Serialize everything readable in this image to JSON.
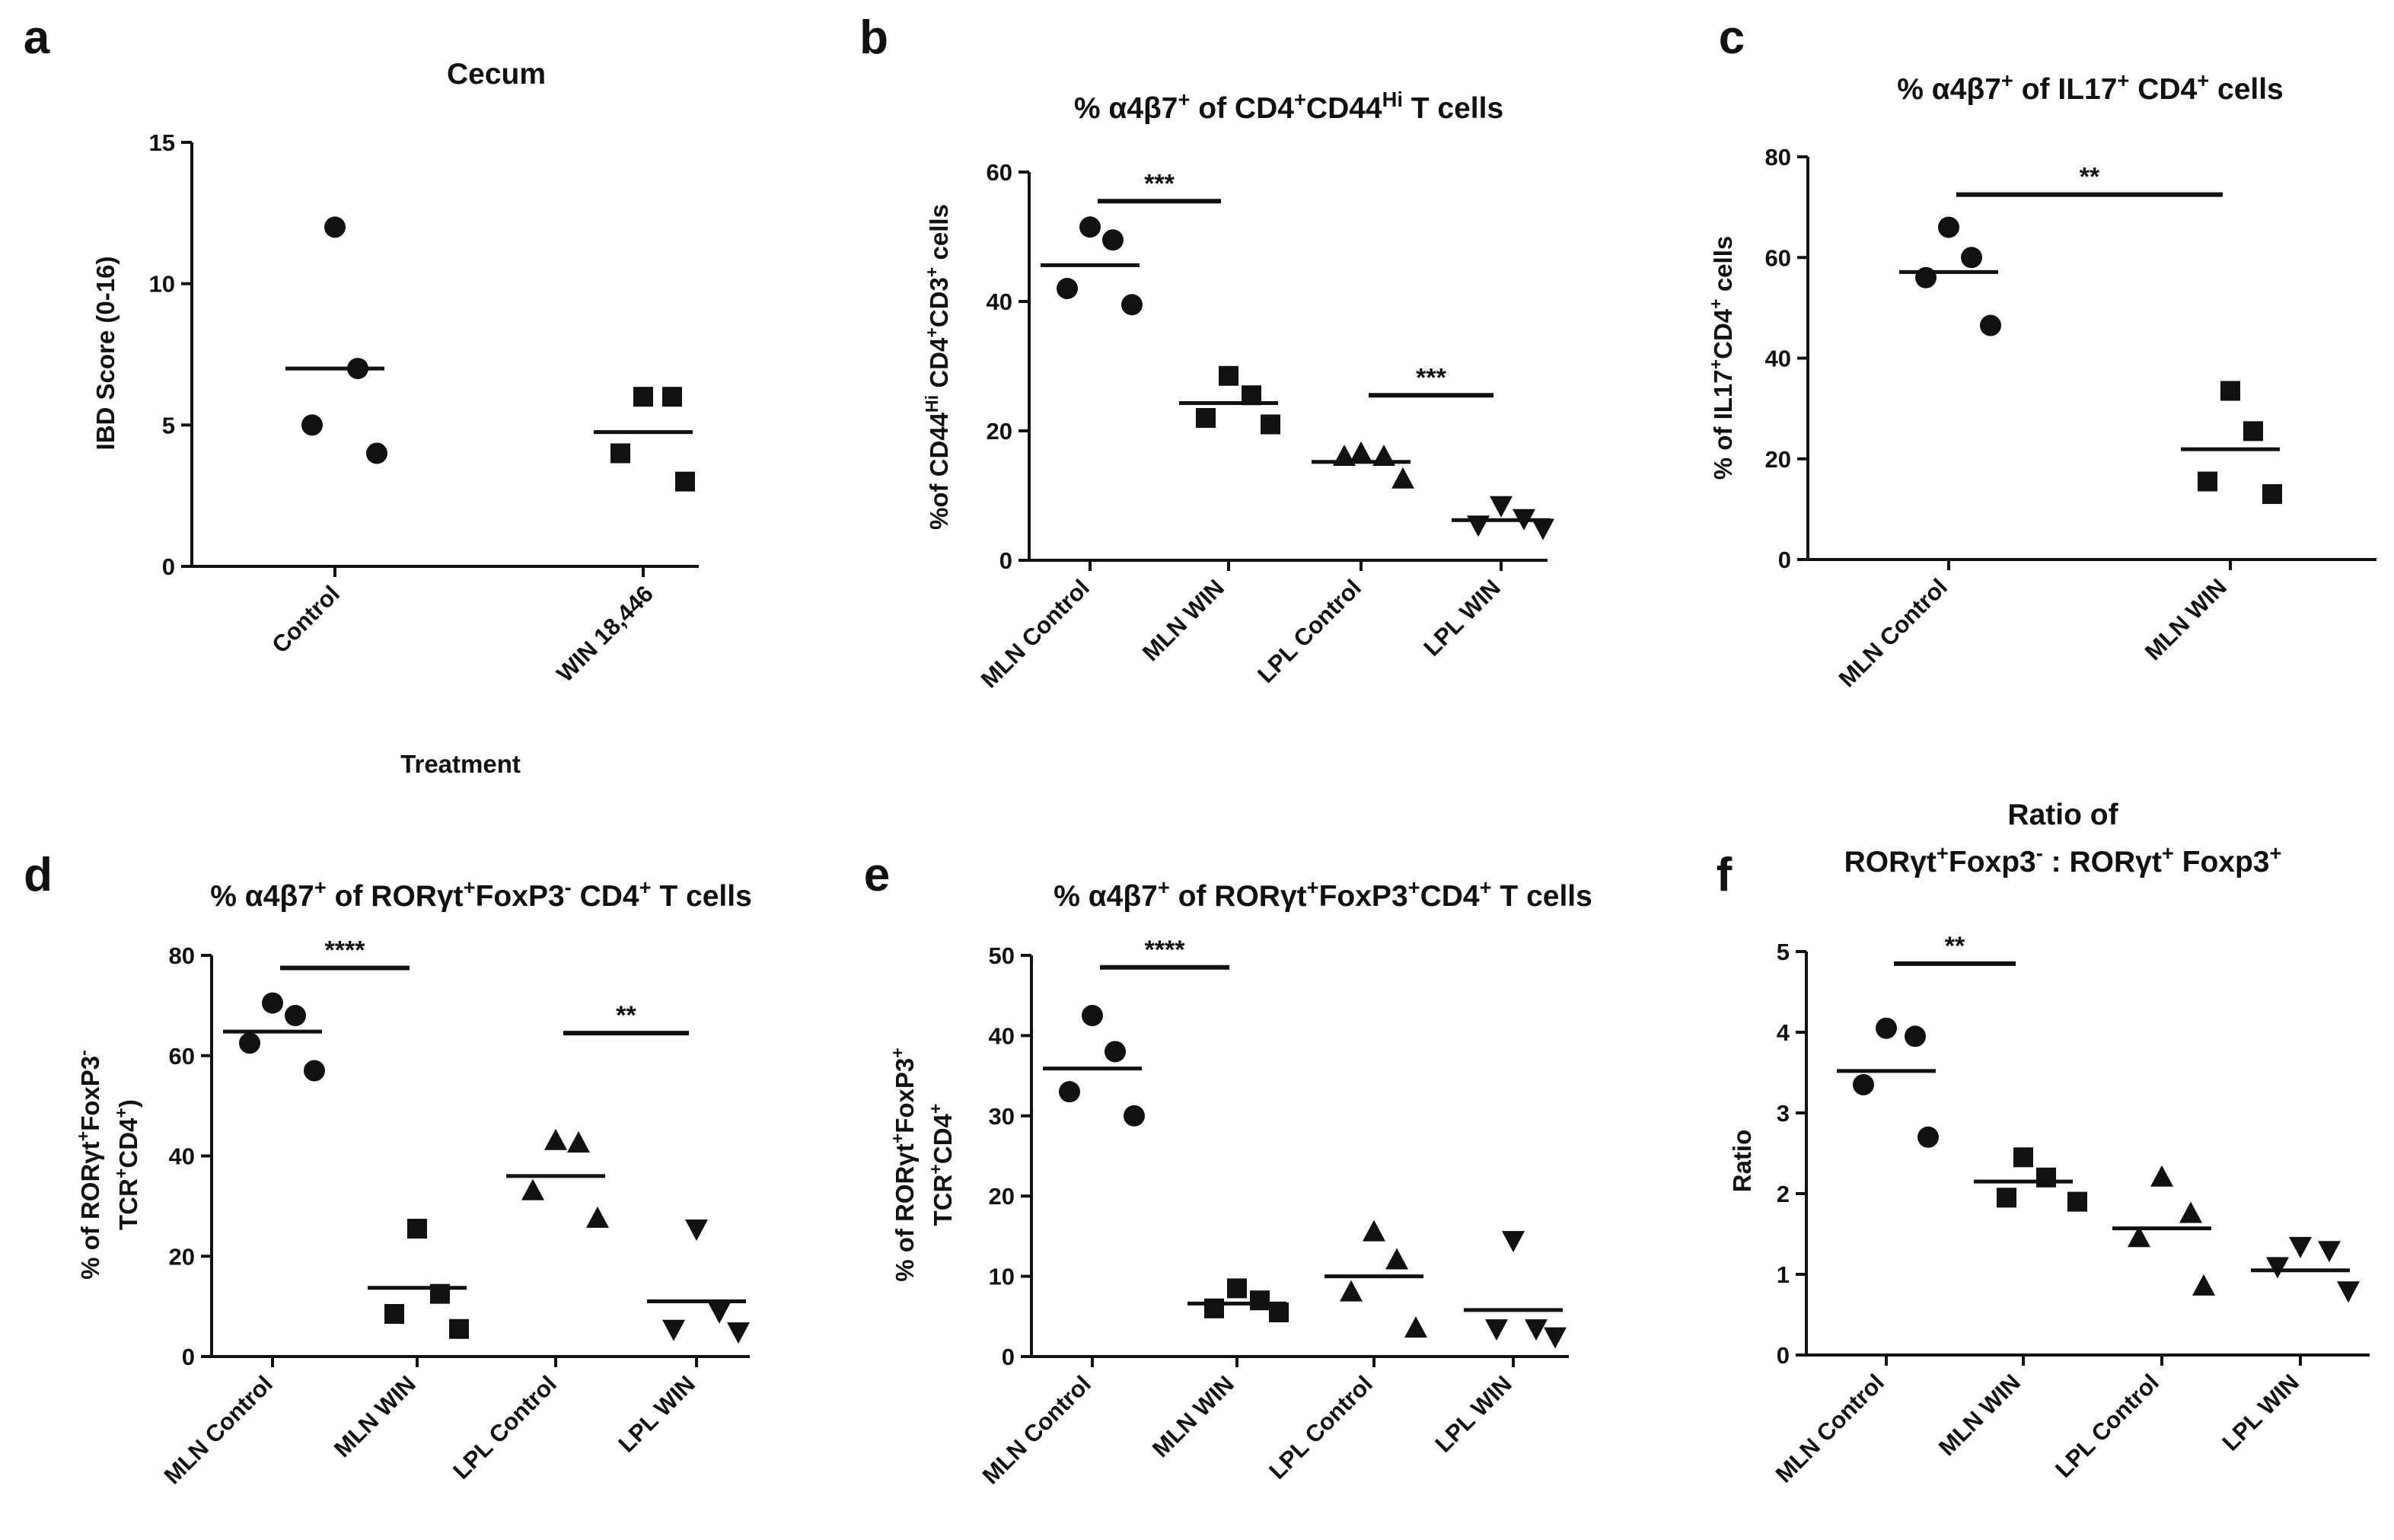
{
  "chart_data": [
    {
      "id": "a",
      "panel_label": "a",
      "type": "scatter",
      "title_lines": [
        [
          {
            "t": "Cecum"
          }
        ]
      ],
      "ylabel_lines": [
        [
          {
            "t": "IBD  Score (0-16)"
          }
        ]
      ],
      "xlabel": "Treatment",
      "ylim": [
        0,
        15
      ],
      "ytick_labels": [
        "0",
        "5",
        "10",
        "15"
      ],
      "groups": [
        {
          "label": "Control",
          "marker": "circle",
          "values": [
            12,
            7,
            5,
            4
          ],
          "mean": 7
        },
        {
          "label": "WIN 18,446",
          "marker": "square",
          "values": [
            6,
            6,
            4,
            3
          ],
          "mean": 4.75
        }
      ],
      "significance": []
    },
    {
      "id": "b",
      "panel_label": "b",
      "type": "scatter",
      "title_lines": [
        [
          {
            "t": "% α4β7"
          },
          {
            "t": "+",
            "sup": true
          },
          {
            "t": " of CD4"
          },
          {
            "t": "+",
            "sup": true
          },
          {
            "t": "CD44"
          },
          {
            "t": "Hi",
            "sup": true
          },
          {
            "t": " T cells"
          }
        ]
      ],
      "ylabel_lines": [
        [
          {
            "t": "%of CD44"
          },
          {
            "t": "Hi",
            "sup": true
          },
          {
            "t": " CD4"
          },
          {
            "t": "+",
            "sup": true
          },
          {
            "t": "CD3"
          },
          {
            "t": "+",
            "sup": true
          },
          {
            "t": " cells"
          }
        ]
      ],
      "xlabel": "",
      "ylim": [
        0,
        60
      ],
      "ytick_labels": [
        "0",
        "20",
        "40",
        "60"
      ],
      "groups": [
        {
          "label": "MLN Control",
          "marker": "circle",
          "values": [
            51.5,
            49.5,
            42,
            39.5
          ],
          "mean": 45.6
        },
        {
          "label": "MLN WIN",
          "marker": "square",
          "values": [
            28.5,
            25.5,
            22,
            21
          ],
          "mean": 24.3
        },
        {
          "label": "LPL Control",
          "marker": "triangle",
          "values": [
            16.5,
            16,
            16,
            12.5
          ],
          "mean": 15.2
        },
        {
          "label": "LPL WIN",
          "marker": "triangle-down",
          "values": [
            8.5,
            6.5,
            5.5,
            5
          ],
          "mean": 6.2
        }
      ],
      "significance": [
        {
          "from": 0,
          "to": 1,
          "y": 55.5,
          "label": "***"
        },
        {
          "from": 2,
          "to": 3,
          "y": 25.5,
          "label": "***"
        }
      ]
    },
    {
      "id": "c",
      "panel_label": "c",
      "type": "scatter",
      "title_lines": [
        [
          {
            "t": "% α4β7"
          },
          {
            "t": "+",
            "sup": true
          },
          {
            "t": " of IL17"
          },
          {
            "t": "+",
            "sup": true
          },
          {
            "t": " CD4"
          },
          {
            "t": "+",
            "sup": true
          },
          {
            "t": " cells"
          }
        ]
      ],
      "ylabel_lines": [
        [
          {
            "t": "% of IL17"
          },
          {
            "t": "+",
            "sup": true
          },
          {
            "t": "CD4"
          },
          {
            "t": "+",
            "sup": true
          },
          {
            "t": " cells"
          }
        ]
      ],
      "xlabel": "",
      "ylim": [
        0,
        80
      ],
      "ytick_labels": [
        "0",
        "20",
        "40",
        "60",
        "80"
      ],
      "groups": [
        {
          "label": "MLN Control",
          "marker": "circle",
          "values": [
            66,
            60,
            56,
            46.5
          ],
          "mean": 57.1
        },
        {
          "label": "MLN WIN",
          "marker": "square",
          "values": [
            33.5,
            25.5,
            15.5,
            13
          ],
          "mean": 21.9
        }
      ],
      "significance": [
        {
          "from": 0,
          "to": 1,
          "y": 72.5,
          "label": "**"
        }
      ]
    },
    {
      "id": "d",
      "panel_label": "d",
      "type": "scatter",
      "title_lines": [
        [
          {
            "t": "% α4β7"
          },
          {
            "t": "+",
            "sup": true
          },
          {
            "t": " of RORγt"
          },
          {
            "t": "+",
            "sup": true
          },
          {
            "t": "FoxP3"
          },
          {
            "t": "-",
            "sup": true
          },
          {
            "t": " CD4"
          },
          {
            "t": "+",
            "sup": true
          },
          {
            "t": " T cells"
          }
        ]
      ],
      "ylabel_lines": [
        [
          {
            "t": "% of RORγt"
          },
          {
            "t": "+",
            "sup": true
          },
          {
            "t": "FoxP3"
          },
          {
            "t": "-",
            "sup": true
          }
        ],
        [
          {
            "t": "TCR"
          },
          {
            "t": "+",
            "sup": true
          },
          {
            "t": "CD4"
          },
          {
            "t": "+",
            "sup": true
          },
          {
            "t": ")"
          }
        ]
      ],
      "xlabel": "",
      "ylim": [
        0,
        80
      ],
      "ytick_labels": [
        "0",
        "20",
        "40",
        "60",
        "80"
      ],
      "groups": [
        {
          "label": "MLN Control",
          "marker": "circle",
          "values": [
            70.5,
            68,
            62.5,
            57
          ],
          "mean": 64.8
        },
        {
          "label": "MLN WIN",
          "marker": "square",
          "values": [
            25.5,
            12.5,
            8.5,
            5.5
          ],
          "mean": 13.7
        },
        {
          "label": "LPL Control",
          "marker": "triangle",
          "values": [
            43,
            42.5,
            33,
            27.5
          ],
          "mean": 36
        },
        {
          "label": "LPL WIN",
          "marker": "triangle-down",
          "values": [
            25.5,
            9,
            5.5,
            5
          ],
          "mean": 11
        }
      ],
      "significance": [
        {
          "from": 0,
          "to": 1,
          "y": 77.5,
          "label": "****"
        },
        {
          "from": 2,
          "to": 3,
          "y": 64.5,
          "label": "**"
        }
      ]
    },
    {
      "id": "e",
      "panel_label": "e",
      "type": "scatter",
      "title_lines": [
        [
          {
            "t": "% α4β7"
          },
          {
            "t": "+",
            "sup": true
          },
          {
            "t": " of RORγt"
          },
          {
            "t": "+",
            "sup": true
          },
          {
            "t": "FoxP3"
          },
          {
            "t": "+",
            "sup": true
          },
          {
            "t": "CD4"
          },
          {
            "t": "+",
            "sup": true
          },
          {
            "t": " T cells"
          }
        ]
      ],
      "ylabel_lines": [
        [
          {
            "t": "% of RORγt"
          },
          {
            "t": "+",
            "sup": true
          },
          {
            "t": "FoxP3"
          },
          {
            "t": "+",
            "sup": true
          }
        ],
        [
          {
            "t": "TCR"
          },
          {
            "t": "+",
            "sup": true
          },
          {
            "t": "CD4"
          },
          {
            "t": "+",
            "sup": true
          }
        ]
      ],
      "xlabel": "",
      "ylim": [
        0,
        50
      ],
      "ytick_labels": [
        "0",
        "10",
        "20",
        "30",
        "40",
        "50"
      ],
      "groups": [
        {
          "label": "MLN Control",
          "marker": "circle",
          "values": [
            42.5,
            38,
            33,
            30
          ],
          "mean": 35.9
        },
        {
          "label": "MLN WIN",
          "marker": "square",
          "values": [
            8.5,
            7,
            6,
            5.5
          ],
          "mean": 6.6
        },
        {
          "label": "LPL Control",
          "marker": "triangle",
          "values": [
            15.5,
            12,
            8,
            3.5
          ],
          "mean": 10
        },
        {
          "label": "LPL WIN",
          "marker": "triangle-down",
          "values": [
            14.5,
            3.5,
            3.5,
            2.5
          ],
          "mean": 5.8
        }
      ],
      "significance": [
        {
          "from": 0,
          "to": 1,
          "y": 48.5,
          "label": "****"
        }
      ]
    },
    {
      "id": "f",
      "panel_label": "f",
      "type": "scatter",
      "title_lines": [
        [
          {
            "t": "Ratio of"
          }
        ],
        [
          {
            "t": "RORγt"
          },
          {
            "t": "+",
            "sup": true
          },
          {
            "t": "Foxp3"
          },
          {
            "t": "-",
            "sup": true
          },
          {
            "t": " : RORγt"
          },
          {
            "t": "+",
            "sup": true
          },
          {
            "t": " Foxp3"
          },
          {
            "t": "+",
            "sup": true
          }
        ]
      ],
      "ylabel_lines": [
        [
          {
            "t": "Ratio"
          }
        ]
      ],
      "xlabel": "",
      "ylim": [
        0,
        5
      ],
      "ytick_labels": [
        "0",
        "1",
        "2",
        "3",
        "4",
        "5"
      ],
      "groups": [
        {
          "label": "MLN Control",
          "marker": "circle",
          "values": [
            4.05,
            3.95,
            3.35,
            2.7
          ],
          "mean": 3.52
        },
        {
          "label": "MLN WIN",
          "marker": "square",
          "values": [
            2.45,
            2.2,
            1.95,
            1.9
          ],
          "mean": 2.15
        },
        {
          "label": "LPL Control",
          "marker": "triangle",
          "values": [
            2.2,
            1.75,
            1.45,
            0.85
          ],
          "mean": 1.57
        },
        {
          "label": "LPL WIN",
          "marker": "triangle-down",
          "values": [
            1.35,
            1.3,
            1.1,
            0.8
          ],
          "mean": 1.05
        }
      ],
      "significance": [
        {
          "from": 0,
          "to": 1,
          "y": 4.85,
          "label": "**"
        }
      ]
    }
  ]
}
